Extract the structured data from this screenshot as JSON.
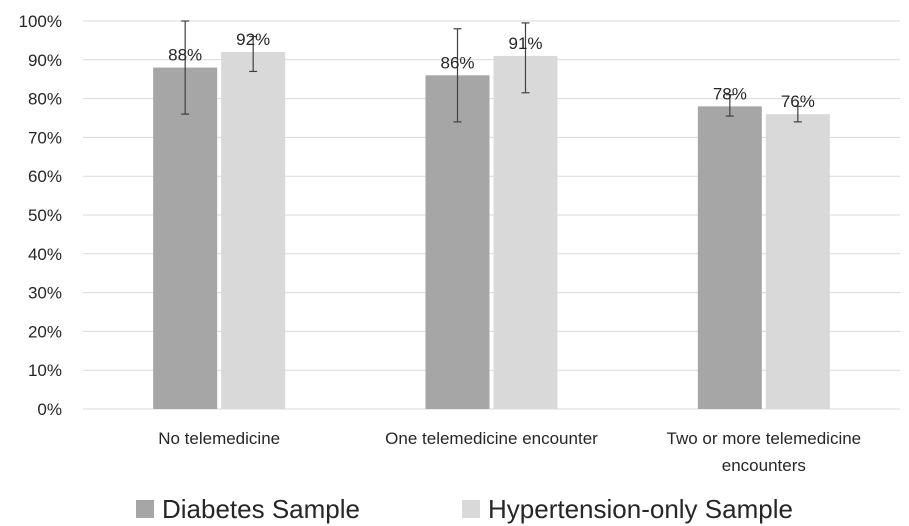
{
  "chart_data": {
    "type": "bar",
    "categories": [
      [
        "No telemedicine"
      ],
      [
        "One telemedicine encounter"
      ],
      [
        "Two or more telemedicine",
        "encounters"
      ]
    ],
    "y_ticks": [
      "0%",
      "10%",
      "20%",
      "30%",
      "40%",
      "50%",
      "60%",
      "70%",
      "80%",
      "90%",
      "100%"
    ],
    "ylim": [
      0,
      100
    ],
    "grid": true,
    "legend_position": "bottom",
    "series": [
      {
        "name": "Diabetes Sample",
        "color": "#a6a6a6",
        "values": [
          88,
          86,
          78
        ],
        "labels": [
          "88%",
          "86%",
          "78%"
        ],
        "error_low": [
          76,
          74,
          75.5
        ],
        "error_high": [
          100,
          98,
          81
        ]
      },
      {
        "name": "Hypertension-only Sample",
        "color": "#d9d9d9",
        "values": [
          92,
          91,
          76
        ],
        "labels": [
          "92%",
          "91%",
          "76%"
        ],
        "error_low": [
          87,
          81.5,
          74
        ],
        "error_high": [
          96,
          99.5,
          78
        ]
      }
    ]
  }
}
